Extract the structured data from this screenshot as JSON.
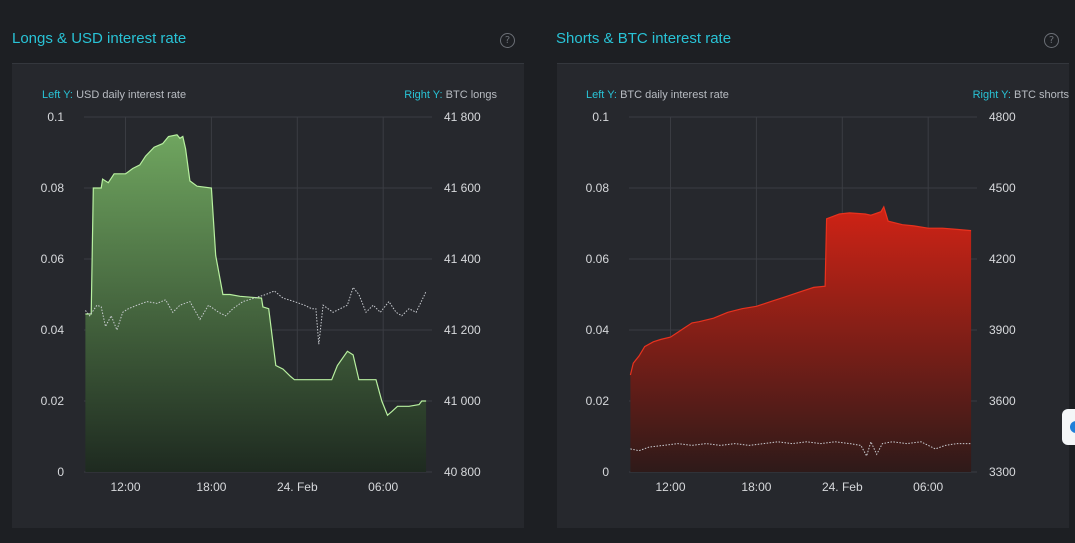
{
  "panels": [
    {
      "title": "Longs & USD interest rate",
      "help": "?",
      "left_label_key": "Left Y:",
      "left_label_val": "USD daily interest rate",
      "right_label_key": "Right Y:",
      "right_label_val": "BTC longs"
    },
    {
      "title": "Shorts & BTC interest rate",
      "help": "?",
      "left_label_key": "Left Y:",
      "left_label_val": "BTC daily interest rate",
      "right_label_key": "Right Y:",
      "right_label_val": "BTC shorts"
    }
  ],
  "chart_data": [
    {
      "type": "area",
      "title": "Longs & USD interest rate",
      "x_ticks": [
        "12:00",
        "18:00",
        "24. Feb",
        "06:00"
      ],
      "x_tick_hours": [
        12,
        18,
        24,
        30
      ],
      "x_range_hours": [
        9.1,
        33.2
      ],
      "left_ticks": [
        "0",
        "0.02",
        "0.04",
        "0.06",
        "0.08",
        "0.1"
      ],
      "left_ylim": [
        0,
        0.1
      ],
      "right_ticks": [
        "40 800",
        "41 000",
        "41 200",
        "41 400",
        "41 600",
        "41 800"
      ],
      "right_ylim": [
        40800,
        41800
      ],
      "grid": true,
      "fill_top": "#6fa55f",
      "fill_bottom": "#1e2a20",
      "line_color": "#b8f0a0",
      "series": [
        {
          "axis": "right",
          "style": "area",
          "points": [
            [
              9.2,
              41245
            ],
            [
              9.6,
              41245
            ],
            [
              9.75,
              41600
            ],
            [
              10.3,
              41600
            ],
            [
              10.4,
              41625
            ],
            [
              10.8,
              41615
            ],
            [
              11.2,
              41640
            ],
            [
              12.0,
              41640
            ],
            [
              12.5,
              41655
            ],
            [
              13.0,
              41665
            ],
            [
              13.4,
              41690
            ],
            [
              14.0,
              41715
            ],
            [
              14.6,
              41725
            ],
            [
              15.0,
              41745
            ],
            [
              15.6,
              41750
            ],
            [
              15.8,
              41740
            ],
            [
              16.0,
              41745
            ],
            [
              16.2,
              41710
            ],
            [
              16.5,
              41620
            ],
            [
              17.0,
              41605
            ],
            [
              18.0,
              41600
            ],
            [
              18.3,
              41410
            ],
            [
              18.8,
              41300
            ],
            [
              19.3,
              41300
            ],
            [
              20.0,
              41295
            ],
            [
              21.5,
              41290
            ],
            [
              21.6,
              41265
            ],
            [
              22.0,
              41260
            ],
            [
              22.5,
              41100
            ],
            [
              23.0,
              41090
            ],
            [
              23.5,
              41070
            ],
            [
              23.8,
              41060
            ],
            [
              24.5,
              41060
            ],
            [
              26.0,
              41060
            ],
            [
              26.4,
              41060
            ],
            [
              26.8,
              41100
            ],
            [
              27.5,
              41140
            ],
            [
              27.9,
              41130
            ],
            [
              28.3,
              41060
            ],
            [
              29.5,
              41060
            ],
            [
              29.9,
              41000
            ],
            [
              30.3,
              40960
            ],
            [
              30.6,
              40970
            ],
            [
              31.0,
              40985
            ],
            [
              31.8,
              40985
            ],
            [
              32.5,
              40990
            ],
            [
              32.7,
              41000
            ],
            [
              33.0,
              41000
            ]
          ]
        },
        {
          "axis": "left",
          "style": "dotted",
          "points": [
            [
              9.2,
              0.0455
            ],
            [
              9.5,
              0.044
            ],
            [
              10.0,
              0.047
            ],
            [
              10.3,
              0.0465
            ],
            [
              10.6,
              0.041
            ],
            [
              11.0,
              0.044
            ],
            [
              11.4,
              0.04
            ],
            [
              11.8,
              0.045
            ],
            [
              12.2,
              0.046
            ],
            [
              12.8,
              0.047
            ],
            [
              13.5,
              0.048
            ],
            [
              14.2,
              0.0475
            ],
            [
              14.8,
              0.0485
            ],
            [
              15.3,
              0.045
            ],
            [
              15.8,
              0.047
            ],
            [
              16.5,
              0.048
            ],
            [
              17.2,
              0.043
            ],
            [
              17.8,
              0.047
            ],
            [
              18.5,
              0.045
            ],
            [
              19.0,
              0.044
            ],
            [
              19.5,
              0.046
            ],
            [
              20.2,
              0.048
            ],
            [
              21.0,
              0.049
            ],
            [
              21.8,
              0.05
            ],
            [
              22.4,
              0.051
            ],
            [
              23.0,
              0.049
            ],
            [
              23.8,
              0.048
            ],
            [
              24.5,
              0.047
            ],
            [
              25.0,
              0.046
            ],
            [
              25.3,
              0.046
            ],
            [
              25.5,
              0.036
            ],
            [
              25.8,
              0.047
            ],
            [
              26.5,
              0.045
            ],
            [
              27.0,
              0.046
            ],
            [
              27.5,
              0.047
            ],
            [
              27.9,
              0.052
            ],
            [
              28.3,
              0.05
            ],
            [
              28.8,
              0.045
            ],
            [
              29.3,
              0.047
            ],
            [
              29.8,
              0.045
            ],
            [
              30.4,
              0.048
            ],
            [
              30.9,
              0.045
            ],
            [
              31.3,
              0.044
            ],
            [
              31.8,
              0.046
            ],
            [
              32.3,
              0.045
            ],
            [
              32.9,
              0.05
            ],
            [
              33.0,
              0.051
            ]
          ]
        }
      ]
    },
    {
      "type": "area",
      "title": "Shorts & BTC interest rate",
      "x_ticks": [
        "12:00",
        "18:00",
        "24. Feb",
        "06:00"
      ],
      "x_tick_hours": [
        12,
        18,
        24,
        30
      ],
      "x_range_hours": [
        9.1,
        33.2
      ],
      "left_ticks": [
        "0",
        "0.02",
        "0.04",
        "0.06",
        "0.08",
        "0.1"
      ],
      "left_ylim": [
        0,
        0.1
      ],
      "right_ticks": [
        "3300",
        "3600",
        "3900",
        "4200",
        "4500",
        "4800"
      ],
      "right_ylim": [
        3300,
        4800
      ],
      "grid": true,
      "fill_top": "#d02315",
      "fill_bottom": "#2e1a19",
      "line_color": "#e8321e",
      "series": [
        {
          "axis": "right",
          "style": "area",
          "points": [
            [
              9.2,
              3710
            ],
            [
              9.4,
              3760
            ],
            [
              9.8,
              3790
            ],
            [
              10.2,
              3830
            ],
            [
              10.8,
              3850
            ],
            [
              11.3,
              3860
            ],
            [
              12.0,
              3870
            ],
            [
              12.5,
              3890
            ],
            [
              13.0,
              3910
            ],
            [
              13.5,
              3930
            ],
            [
              14.0,
              3935
            ],
            [
              15.0,
              3950
            ],
            [
              16.0,
              3975
            ],
            [
              17.0,
              3990
            ],
            [
              18.0,
              4000
            ],
            [
              19.0,
              4020
            ],
            [
              20.0,
              4040
            ],
            [
              21.0,
              4060
            ],
            [
              22.0,
              4080
            ],
            [
              22.8,
              4085
            ],
            [
              22.9,
              4370
            ],
            [
              23.8,
              4390
            ],
            [
              24.5,
              4395
            ],
            [
              25.6,
              4390
            ],
            [
              26.0,
              4385
            ],
            [
              26.7,
              4400
            ],
            [
              26.9,
              4420
            ],
            [
              27.2,
              4360
            ],
            [
              28.2,
              4345
            ],
            [
              29.0,
              4340
            ],
            [
              30.0,
              4330
            ],
            [
              31.0,
              4330
            ],
            [
              32.0,
              4325
            ],
            [
              33.0,
              4320
            ]
          ]
        },
        {
          "axis": "left",
          "style": "dotted",
          "points": [
            [
              9.2,
              0.0065
            ],
            [
              9.8,
              0.006
            ],
            [
              10.5,
              0.007
            ],
            [
              11.5,
              0.0075
            ],
            [
              12.5,
              0.008
            ],
            [
              13.5,
              0.0075
            ],
            [
              14.5,
              0.008
            ],
            [
              15.5,
              0.0075
            ],
            [
              16.5,
              0.008
            ],
            [
              17.5,
              0.0075
            ],
            [
              18.5,
              0.008
            ],
            [
              19.5,
              0.0085
            ],
            [
              20.5,
              0.008
            ],
            [
              21.5,
              0.0085
            ],
            [
              22.5,
              0.008
            ],
            [
              23.5,
              0.0085
            ],
            [
              24.5,
              0.008
            ],
            [
              25.3,
              0.0075
            ],
            [
              25.7,
              0.0045
            ],
            [
              26.0,
              0.0085
            ],
            [
              26.4,
              0.005
            ],
            [
              26.8,
              0.008
            ],
            [
              27.5,
              0.0085
            ],
            [
              28.5,
              0.008
            ],
            [
              29.5,
              0.0085
            ],
            [
              30.5,
              0.0065
            ],
            [
              31.2,
              0.0075
            ],
            [
              32.0,
              0.008
            ],
            [
              33.0,
              0.008
            ]
          ]
        }
      ]
    }
  ]
}
